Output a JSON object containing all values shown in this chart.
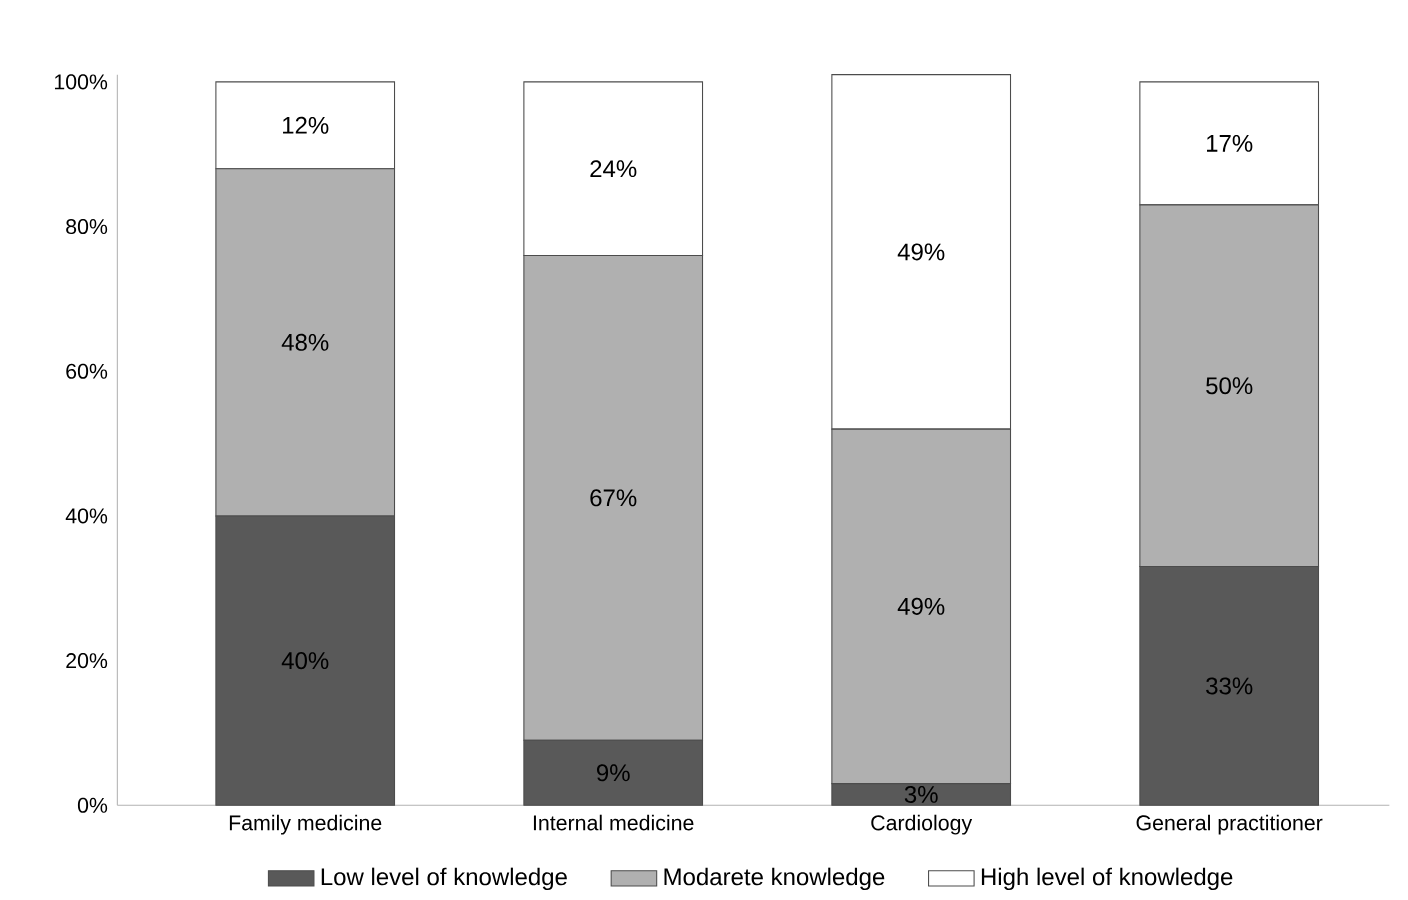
{
  "chart_data": {
    "type": "bar",
    "stacked": true,
    "categories": [
      "Family medicine",
      "Internal medicine",
      "Cardiology",
      "General practitioner"
    ],
    "series": [
      {
        "name": "Low level of knowledge",
        "color": "#595959",
        "values": [
          40,
          9,
          3,
          33
        ],
        "value_labels": [
          "40%",
          "9%",
          "3%",
          "33%"
        ]
      },
      {
        "name": "Modarete knowledge",
        "color": "#b0b0b0",
        "values": [
          48,
          67,
          49,
          50
        ],
        "value_labels": [
          "48%",
          "67%",
          "49%",
          "50%"
        ]
      },
      {
        "name": "High level of knowledge",
        "color": "#ffffff",
        "values": [
          12,
          24,
          49,
          17
        ],
        "value_labels": [
          "12%",
          "24%",
          "49%",
          "17%"
        ]
      }
    ],
    "ylim": [
      0,
      101
    ],
    "yticks": [
      {
        "value": 0,
        "label": "0%"
      },
      {
        "value": 20,
        "label": "20%"
      },
      {
        "value": 40,
        "label": "40%"
      },
      {
        "value": 60,
        "label": "60%"
      },
      {
        "value": 80,
        "label": "80%"
      },
      {
        "value": 100,
        "label": "100%"
      }
    ],
    "legend": "bottom",
    "grid": false
  }
}
